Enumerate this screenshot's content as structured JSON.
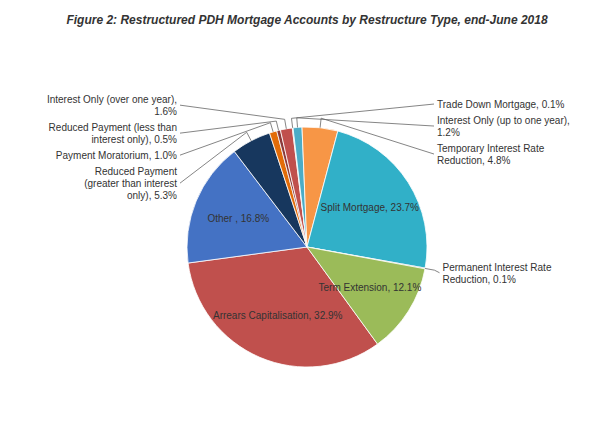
{
  "chart_data": {
    "type": "pie",
    "title": "Figure 2: Restructured PDH Mortgage Accounts by Restructure Type, end-June 2018",
    "categories": [
      "Arrears Capitalisation, 32.9%",
      "Other , 16.8%",
      "Reduced Payment\n(greater than interest\nonly), 5.3%",
      "Payment Moratorium, 1.0%",
      "Reduced Payment (less than\ninterest only), 0.5%",
      "Interest Only (over one year),\n1.6%",
      "Trade Down Mortgage, 0.1%",
      "Interest Only (up to one year),\n1.2%",
      "Temporary Interest Rate\nReduction, 4.8%",
      "Split Mortgage, 23.7%",
      "Permanent Interest Rate\nReduction, 0.1%",
      "Term Extension, 12.1%"
    ],
    "values": [
      32.9,
      16.8,
      5.3,
      1.0,
      0.5,
      1.6,
      0.1,
      1.2,
      4.8,
      23.7,
      0.1,
      12.1
    ],
    "colors": [
      "#C0504D",
      "#4472C4",
      "#17375E",
      "#E36C09",
      "#8B3A3A",
      "#C0504D",
      "#948A54",
      "#4BACC6",
      "#F79646",
      "#31B0C8",
      "#1F497D",
      "#9BBB59"
    ]
  }
}
